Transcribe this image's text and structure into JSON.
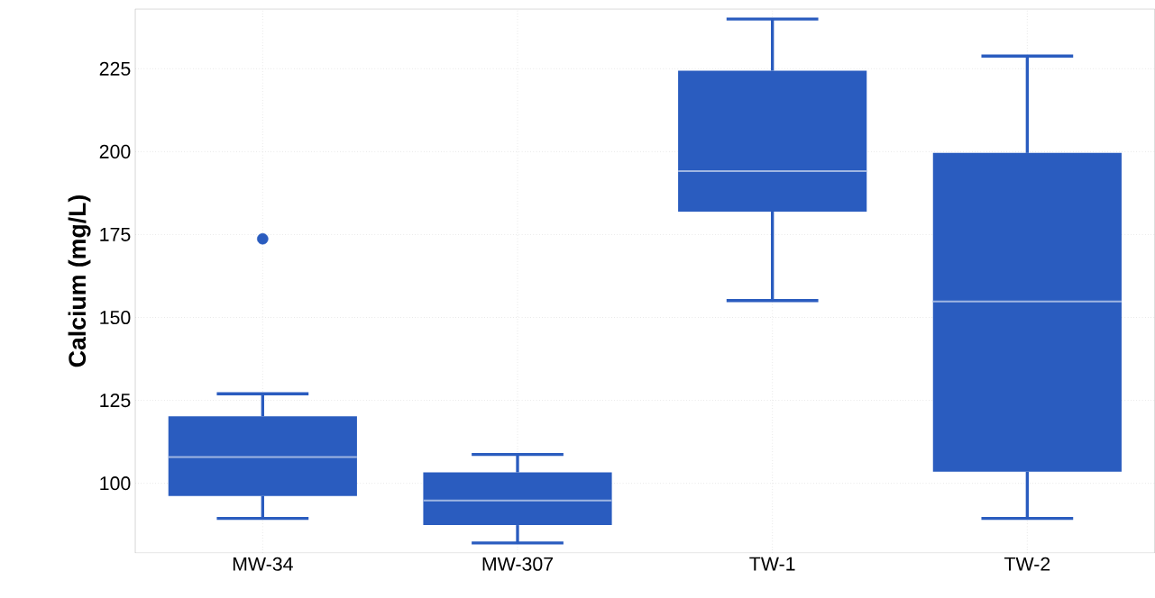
{
  "chart_data": {
    "type": "box",
    "ylabel": "Calcium (mg/L)",
    "categories": [
      "MW-34",
      "MW-307",
      "TW-1",
      "TW-2"
    ],
    "boxes": [
      {
        "low": 89.4,
        "q1": 96.2,
        "median": 107.9,
        "q3": 120.2,
        "high": 127,
        "outliers": [
          173.7
        ]
      },
      {
        "low": 82,
        "q1": 87.4,
        "median": 94.8,
        "q3": 103.3,
        "high": 108.7
      },
      {
        "low": 155.1,
        "q1": 181.9,
        "median": 194.1,
        "q3": 224.4,
        "high": 240
      },
      {
        "low": 89.4,
        "q1": 103.5,
        "median": 154.8,
        "q3": 199.6,
        "high": 228.8
      }
    ],
    "color": "#2a5cbf",
    "ylim": [
      79,
      243
    ],
    "yticks": [
      100,
      125,
      150,
      175,
      200,
      225
    ],
    "grid": true,
    "marker": "circle"
  }
}
